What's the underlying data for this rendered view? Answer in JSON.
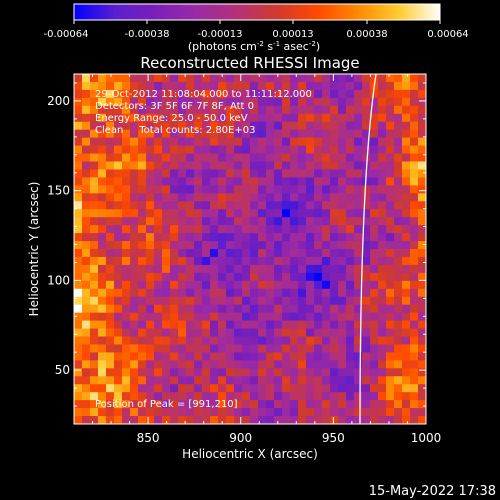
{
  "colorbar": {
    "ticks": [
      "-0.00064",
      "-0.00038",
      "-0.00013",
      "0.00013",
      "0.00038",
      "0.00064"
    ],
    "units_label": "(photons cm",
    "units_exp1": "-2",
    "units_s": " s",
    "units_exp2": "-1",
    "units_asec": " asec",
    "units_exp3": "-2",
    "units_close": ")",
    "colors": [
      "#0000ff",
      "#5a1fd0",
      "#7a1fb8",
      "#9a2aa6",
      "#b43178",
      "#d03a2e",
      "#ff4a00",
      "#ff8a00",
      "#ffcc30",
      "#ffffff"
    ]
  },
  "chart_data": {
    "type": "heatmap",
    "title": "Reconstructed RHESSI Image",
    "xlabel": "Heliocentric X (arcsec)",
    "ylabel": "Heliocentric Y (arcsec)",
    "xlim": [
      810,
      1000
    ],
    "ylim": [
      20,
      215
    ],
    "x_ticks": [
      850,
      900,
      950,
      1000
    ],
    "y_ticks": [
      50,
      100,
      150,
      200
    ],
    "value_range": [
      -0.00064,
      0.00064
    ],
    "annotations": [
      "29-Oct-2012 11:08:04.000 to 11:11:12.000",
      "Detectors: 3F 5F 6F 7F 8F, Att 0",
      "Energy Range: 25.0 - 50.0 keV",
      "Clean     Total counts: 2.80E+03"
    ],
    "peak_label": "Position of Peak = [991,210]",
    "peak": [
      991,
      210
    ],
    "limb": "solid white arc",
    "grid": false
  },
  "footer": {
    "timestamp": "15-May-2022 17:38"
  }
}
